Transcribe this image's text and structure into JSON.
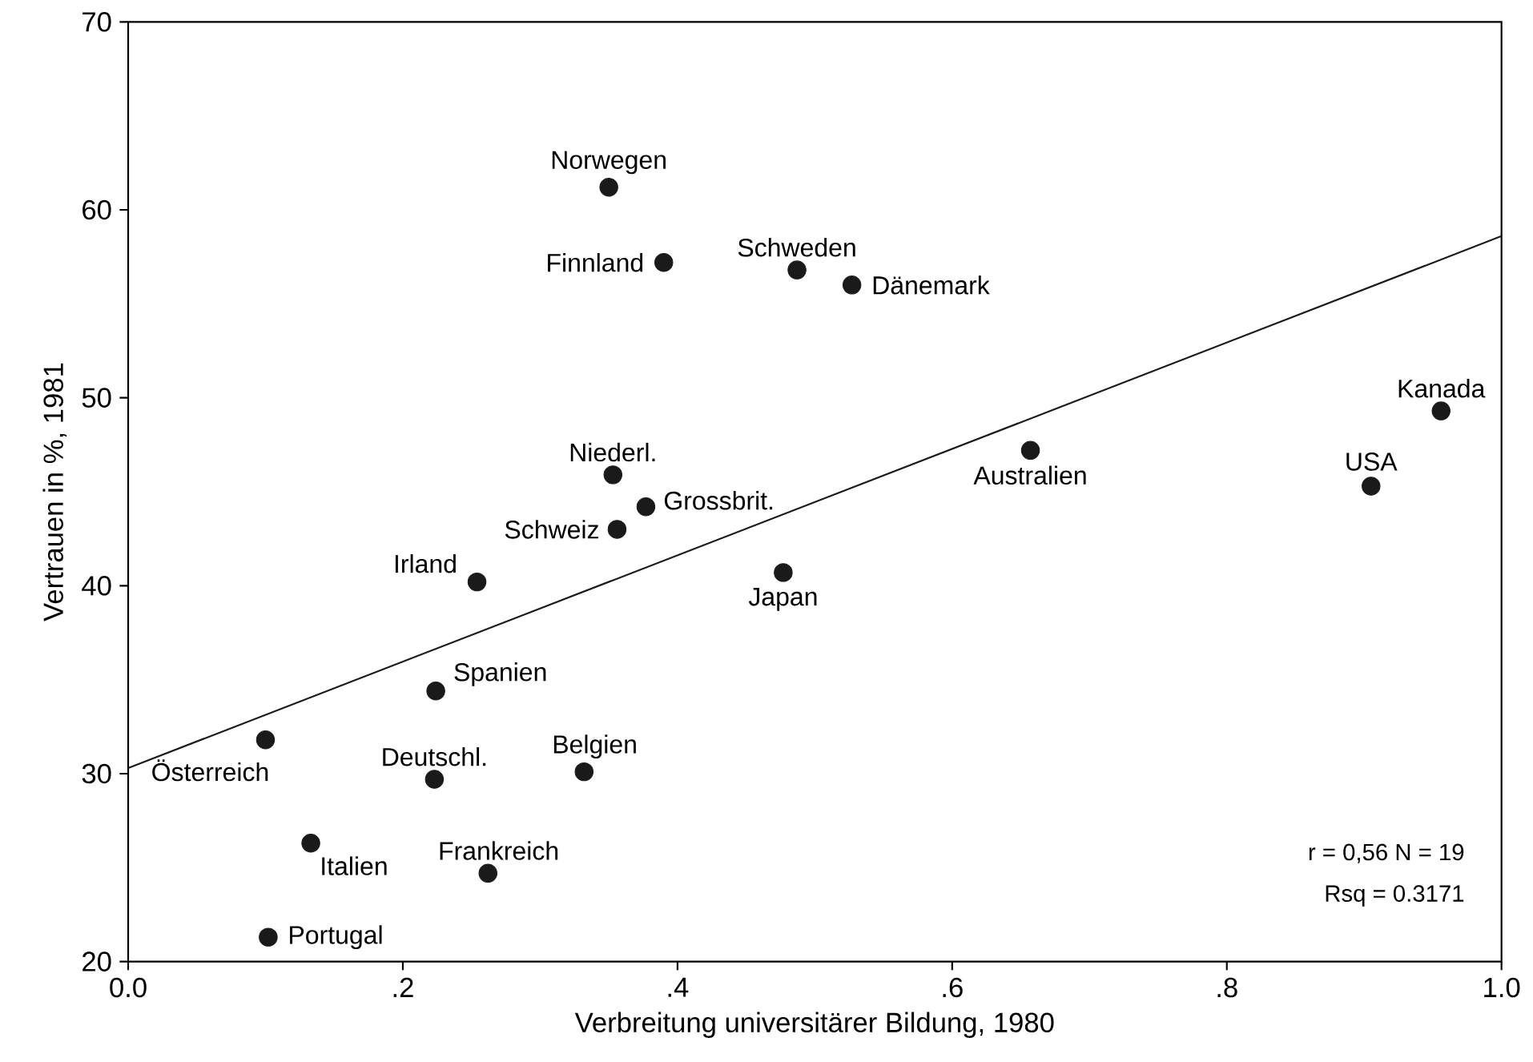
{
  "chart_data": {
    "type": "scatter",
    "xlabel": "Verbreitung universitärer Bildung, 1980",
    "ylabel": "Vertrauen in %, 1981",
    "xlim": [
      0,
      1
    ],
    "ylim": [
      20,
      70
    ],
    "xticks": [
      {
        "value": 0,
        "label": "0.0"
      },
      {
        "value": 0.2,
        "label": ".2"
      },
      {
        "value": 0.4,
        "label": ".4"
      },
      {
        "value": 0.6,
        "label": ".6"
      },
      {
        "value": 0.8,
        "label": ".8"
      },
      {
        "value": 1,
        "label": "1.0"
      }
    ],
    "yticks": [
      20,
      30,
      40,
      50,
      60,
      70
    ],
    "series": [
      {
        "color": "#1a1a1a",
        "marker": "circle",
        "x": [
          0.35,
          0.39,
          0.487,
          0.527,
          0.956,
          0.905,
          0.657,
          0.477,
          0.353,
          0.377,
          0.356,
          0.254,
          0.224,
          0.1,
          0.223,
          0.332,
          0.133,
          0.262,
          0.102
        ],
        "values": [
          61.2,
          57.2,
          56.8,
          56.0,
          49.3,
          45.3,
          47.2,
          40.7,
          45.9,
          44.2,
          43.0,
          40.2,
          34.4,
          31.8,
          29.7,
          30.1,
          26.3,
          24.7,
          21.3
        ]
      },
      {
        "type": "line",
        "color": "#1a1a1a",
        "marker": "none",
        "x": [
          0,
          1
        ],
        "values": [
          30.3,
          58.6
        ]
      }
    ],
    "annotations": [
      {
        "text": "Norwegen",
        "x": 0.35,
        "y": 61.2
      },
      {
        "text": "Finnland",
        "x": 0.39,
        "y": 57.2
      },
      {
        "text": "Schweden",
        "x": 0.487,
        "y": 56.8
      },
      {
        "text": "Dänemark",
        "x": 0.527,
        "y": 56.0
      },
      {
        "text": "Kanada",
        "x": 0.956,
        "y": 49.3
      },
      {
        "text": "USA",
        "x": 0.905,
        "y": 45.3
      },
      {
        "text": "Australien",
        "x": 0.657,
        "y": 47.2
      },
      {
        "text": "Japan",
        "x": 0.477,
        "y": 40.7
      },
      {
        "text": "Niederl.",
        "x": 0.353,
        "y": 45.9
      },
      {
        "text": "Grossbrit.",
        "x": 0.377,
        "y": 44.2
      },
      {
        "text": "Schweiz",
        "x": 0.356,
        "y": 43.0
      },
      {
        "text": "Irland",
        "x": 0.254,
        "y": 40.2
      },
      {
        "text": "Spanien",
        "x": 0.224,
        "y": 34.4
      },
      {
        "text": "Österreich",
        "x": 0.1,
        "y": 31.8
      },
      {
        "text": "Deutschl.",
        "x": 0.223,
        "y": 29.7
      },
      {
        "text": "Belgien",
        "x": 0.332,
        "y": 30.1
      },
      {
        "text": "Italien",
        "x": 0.133,
        "y": 26.3
      },
      {
        "text": "Frankreich",
        "x": 0.262,
        "y": 24.7
      },
      {
        "text": "Portugal",
        "x": 0.102,
        "y": 21.3
      },
      "r = 0,56  N = 19",
      "Rsq = 0.3171"
    ]
  }
}
